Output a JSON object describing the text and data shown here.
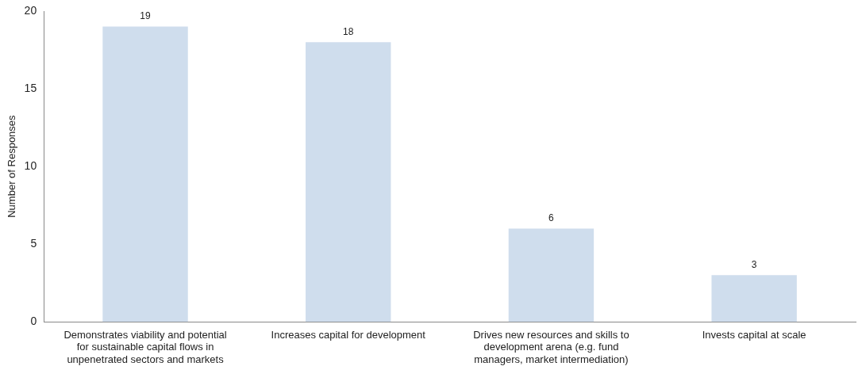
{
  "chart_data": {
    "type": "bar",
    "ylabel": "Number of Responses",
    "categories": [
      "Demonstrates viability and potential for sustainable capital flows in unpenetrated sectors and markets",
      "Increases capital for development",
      "Drives new resources and skills to development arena (e.g. fund managers, market intermediation)",
      "Invests capital at scale"
    ],
    "values": [
      19,
      18,
      6,
      3
    ],
    "color": "#cfdded",
    "ylim": [
      0,
      20
    ],
    "yticks": [
      0,
      5,
      10,
      15,
      20
    ],
    "grid": false,
    "legend": false,
    "data_labels": true
  }
}
